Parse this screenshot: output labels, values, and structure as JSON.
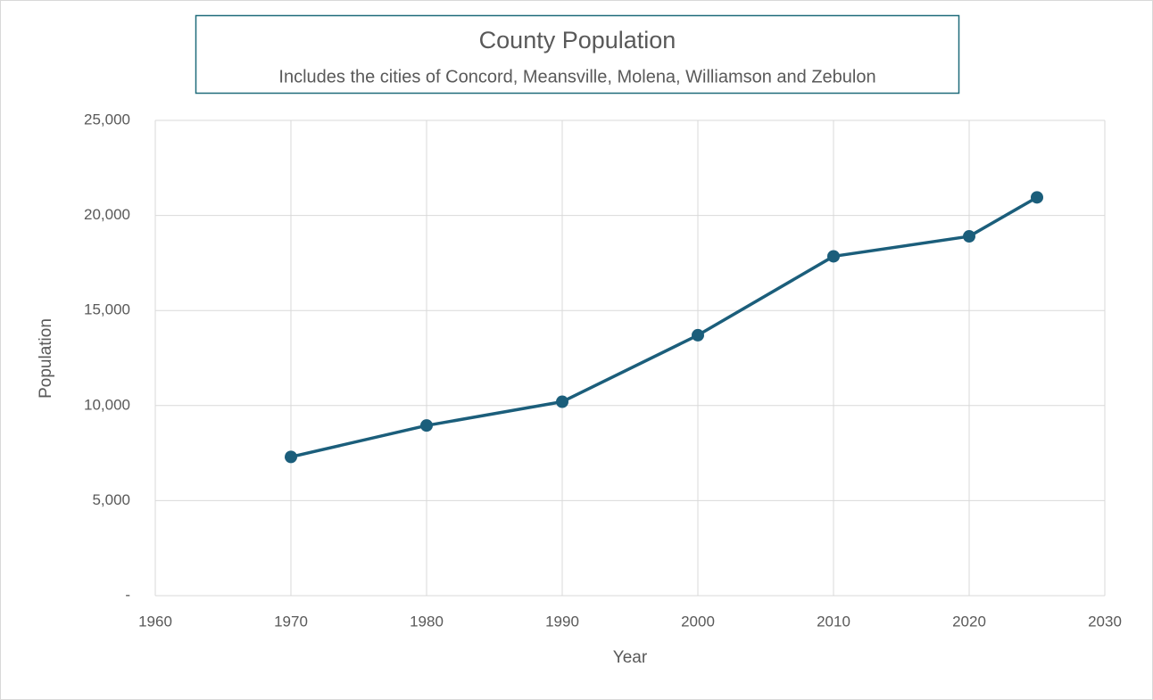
{
  "chart_data": {
    "type": "line",
    "title": "County Population",
    "subtitle": "Includes the cities of Concord, Meansville, Molena, Williamson and Zebulon",
    "x_label": "Year",
    "y_label": "Population",
    "x": [
      1970,
      1980,
      1990,
      2000,
      2010,
      2020,
      2025
    ],
    "values": [
      7300,
      8950,
      10200,
      13700,
      17850,
      18900,
      20950
    ],
    "color": "#1b5e7b",
    "xlim": [
      1960,
      2030
    ],
    "xticks": [
      1960,
      1970,
      1980,
      1990,
      2000,
      2010,
      2020,
      2030
    ],
    "ylim": [
      0,
      25000
    ],
    "yticks": [
      {
        "value": 0,
        "label": "-"
      },
      {
        "value": 5000,
        "label": "5,000"
      },
      {
        "value": 10000,
        "label": "10,000"
      },
      {
        "value": 15000,
        "label": "15,000"
      },
      {
        "value": 20000,
        "label": "20,000"
      },
      {
        "value": 25000,
        "label": "25,000"
      }
    ],
    "grid": true,
    "markers": true
  }
}
